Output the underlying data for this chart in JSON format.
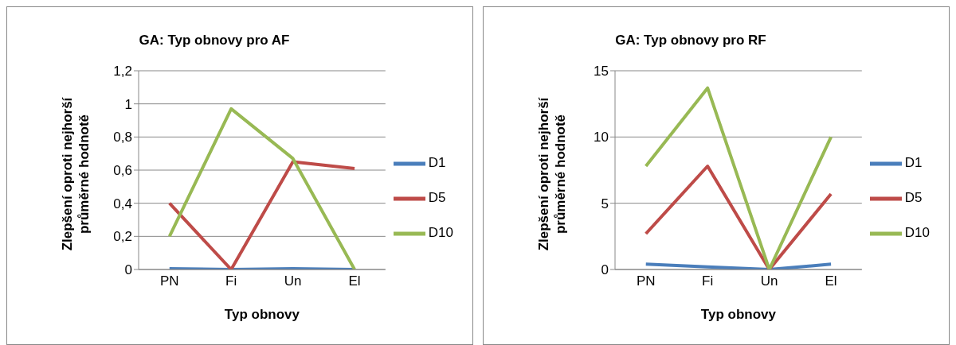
{
  "chart_data": [
    {
      "type": "line",
      "title": "GA: Typ obnovy pro AF",
      "xlabel": "Typ obnovy",
      "ylabel": "Zlepšení oproti nejhorší průměrné hodnotě",
      "categories": [
        "PN",
        "Fi",
        "Un",
        "El"
      ],
      "series": [
        {
          "name": "D1",
          "color": "#4a7ebb",
          "values": [
            0.005,
            0,
            0.005,
            0
          ]
        },
        {
          "name": "D5",
          "color": "#be4b48",
          "values": [
            0.4,
            0,
            0.65,
            0.61
          ]
        },
        {
          "name": "D10",
          "color": "#98b954",
          "values": [
            0.2,
            0.97,
            0.67,
            0
          ]
        }
      ],
      "ylim": [
        0,
        1.2
      ],
      "yticks": [
        0,
        {
          "value": 0.2,
          "label": "0,2"
        },
        {
          "value": 0.4,
          "label": "0,4"
        },
        {
          "value": 0.6,
          "label": "0,6"
        },
        {
          "value": 0.8,
          "label": "0,8"
        },
        1,
        {
          "value": 1.2,
          "label": "1,2"
        }
      ],
      "grid": "y",
      "legend": "right",
      "marker": "none",
      "line_style": "solid"
    },
    {
      "type": "line",
      "title": "GA: Typ obnovy pro RF",
      "xlabel": "Typ obnovy",
      "ylabel": "Zlepšení oproti nejhorší průměrné hodnotě",
      "categories": [
        "PN",
        "Fi",
        "Un",
        "El"
      ],
      "series": [
        {
          "name": "D1",
          "color": "#4a7ebb",
          "values": [
            0.4,
            0.2,
            0,
            0.4
          ]
        },
        {
          "name": "D5",
          "color": "#be4b48",
          "values": [
            2.7,
            7.8,
            0,
            5.7
          ]
        },
        {
          "name": "D10",
          "color": "#98b954",
          "values": [
            7.8,
            13.7,
            0,
            10
          ]
        }
      ],
      "ylim": [
        0,
        15
      ],
      "yticks": [
        0,
        5,
        10,
        15
      ],
      "grid": "y",
      "legend": "right",
      "marker": "none",
      "line_style": "solid"
    }
  ]
}
